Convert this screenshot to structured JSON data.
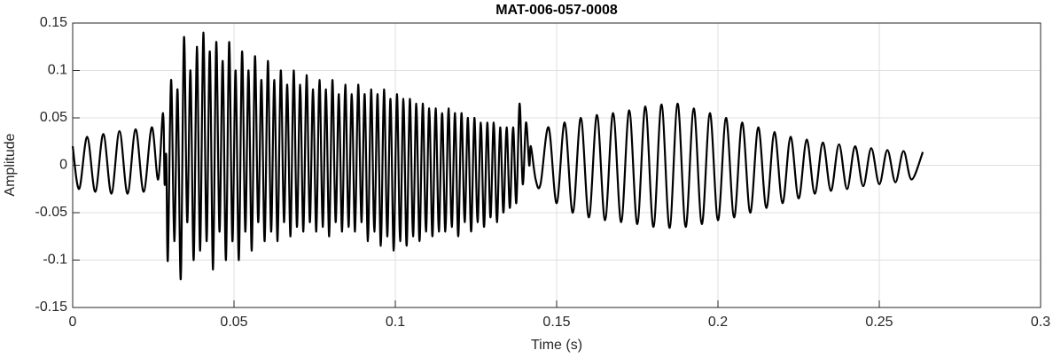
{
  "chart_data": {
    "type": "line",
    "title": "MAT-006-057-0008",
    "xlabel": "Time (s)",
    "ylabel": "Amplitude",
    "xlim": [
      0,
      0.3
    ],
    "ylim": [
      -0.15,
      0.15
    ],
    "xticks": [
      0,
      0.05,
      0.1,
      0.15,
      0.2,
      0.25,
      0.3
    ],
    "yticks": [
      -0.15,
      -0.1,
      -0.05,
      0,
      0.05,
      0.1,
      0.15
    ],
    "grid": true,
    "series": [
      {
        "color": "#000000",
        "x": [
          0,
          0.002,
          0.0045,
          0.007,
          0.0095,
          0.012,
          0.0145,
          0.017,
          0.0195,
          0.022,
          0.0245,
          0.0265,
          0.028,
          0.0285,
          0.029,
          0.0295,
          0.0305,
          0.0315,
          0.0325,
          0.0335,
          0.0345,
          0.0355,
          0.0365,
          0.0375,
          0.0385,
          0.0395,
          0.0405,
          0.0415,
          0.0425,
          0.0435,
          0.0445,
          0.0455,
          0.0465,
          0.0475,
          0.0485,
          0.0495,
          0.0505,
          0.0515,
          0.0525,
          0.0535,
          0.0545,
          0.0555,
          0.0565,
          0.0575,
          0.0585,
          0.0595,
          0.0605,
          0.0615,
          0.0625,
          0.0635,
          0.0645,
          0.0655,
          0.0665,
          0.0675,
          0.0685,
          0.0695,
          0.0705,
          0.0715,
          0.0725,
          0.0735,
          0.0745,
          0.0755,
          0.0765,
          0.0775,
          0.0785,
          0.0795,
          0.0805,
          0.0815,
          0.0825,
          0.0835,
          0.0845,
          0.0855,
          0.0865,
          0.0875,
          0.0885,
          0.0895,
          0.0905,
          0.0915,
          0.0925,
          0.0935,
          0.0945,
          0.0955,
          0.0965,
          0.0975,
          0.0985,
          0.0995,
          0.1005,
          0.1015,
          0.1025,
          0.1035,
          0.1045,
          0.1055,
          0.1065,
          0.1075,
          0.1085,
          0.1095,
          0.1105,
          0.1115,
          0.1125,
          0.1135,
          0.1145,
          0.1155,
          0.1165,
          0.1175,
          0.1185,
          0.1195,
          0.1205,
          0.1215,
          0.1225,
          0.1235,
          0.1245,
          0.1255,
          0.1265,
          0.1275,
          0.1285,
          0.1295,
          0.1305,
          0.1315,
          0.1325,
          0.1335,
          0.1345,
          0.1355,
          0.1365,
          0.1375,
          0.1385,
          0.1395,
          0.1405,
          0.1415,
          0.142,
          0.1435,
          0.145,
          0.1475,
          0.15,
          0.1525,
          0.155,
          0.1575,
          0.16,
          0.1625,
          0.165,
          0.1675,
          0.17,
          0.1725,
          0.175,
          0.1775,
          0.18,
          0.1825,
          0.185,
          0.1875,
          0.19,
          0.1925,
          0.195,
          0.1975,
          0.2,
          0.2025,
          0.205,
          0.2075,
          0.21,
          0.2125,
          0.215,
          0.2175,
          0.22,
          0.2225,
          0.225,
          0.2275,
          0.23,
          0.2325,
          0.235,
          0.2375,
          0.24,
          0.2425,
          0.245,
          0.2475,
          0.25,
          0.2525,
          0.255,
          0.2575,
          0.26,
          0.2635
        ],
        "values": [
          0.02,
          -0.025,
          0.03,
          -0.028,
          0.033,
          -0.03,
          0.036,
          -0.03,
          0.038,
          -0.028,
          0.04,
          -0.015,
          0.055,
          -0.02,
          0.01,
          -0.1,
          0.09,
          -0.08,
          0.08,
          -0.12,
          0.135,
          -0.06,
          0.1,
          -0.1,
          0.125,
          -0.09,
          0.14,
          -0.08,
          0.12,
          -0.11,
          0.13,
          -0.07,
          0.11,
          -0.1,
          0.13,
          -0.08,
          0.1,
          -0.1,
          0.12,
          -0.07,
          0.1,
          -0.09,
          0.115,
          -0.06,
          0.09,
          -0.08,
          0.11,
          -0.07,
          0.09,
          -0.08,
          0.1,
          -0.06,
          0.085,
          -0.075,
          0.1,
          -0.065,
          0.085,
          -0.07,
          0.095,
          -0.06,
          0.08,
          -0.07,
          0.09,
          -0.065,
          0.08,
          -0.075,
          0.09,
          -0.06,
          0.075,
          -0.07,
          0.085,
          -0.065,
          0.075,
          -0.07,
          0.085,
          -0.06,
          0.075,
          -0.08,
          0.08,
          -0.07,
          0.075,
          -0.085,
          0.08,
          -0.075,
          0.07,
          -0.09,
          0.075,
          -0.08,
          0.07,
          -0.085,
          0.07,
          -0.075,
          0.065,
          -0.08,
          0.065,
          -0.07,
          0.06,
          -0.075,
          0.06,
          -0.07,
          0.055,
          -0.07,
          0.06,
          -0.065,
          0.055,
          -0.075,
          0.055,
          -0.06,
          0.05,
          -0.07,
          0.05,
          -0.06,
          0.045,
          -0.065,
          0.045,
          -0.055,
          0.045,
          -0.06,
          0.04,
          -0.05,
          0.04,
          -0.045,
          0.04,
          -0.04,
          0.065,
          -0.02,
          0.045,
          0,
          0.02,
          -0.015,
          -0.02,
          0.04,
          -0.04,
          0.045,
          -0.05,
          0.05,
          -0.055,
          0.053,
          -0.058,
          0.055,
          -0.06,
          0.058,
          -0.062,
          0.062,
          -0.065,
          0.064,
          -0.066,
          0.065,
          -0.065,
          0.06,
          -0.062,
          0.055,
          -0.058,
          0.05,
          -0.055,
          0.045,
          -0.05,
          0.04,
          -0.045,
          0.035,
          -0.04,
          0.03,
          -0.035,
          0.027,
          -0.03,
          0.024,
          -0.027,
          0.022,
          -0.025,
          0.02,
          -0.022,
          0.018,
          -0.02,
          0.016,
          -0.018,
          0.015,
          -0.015,
          0.014
        ]
      }
    ]
  }
}
